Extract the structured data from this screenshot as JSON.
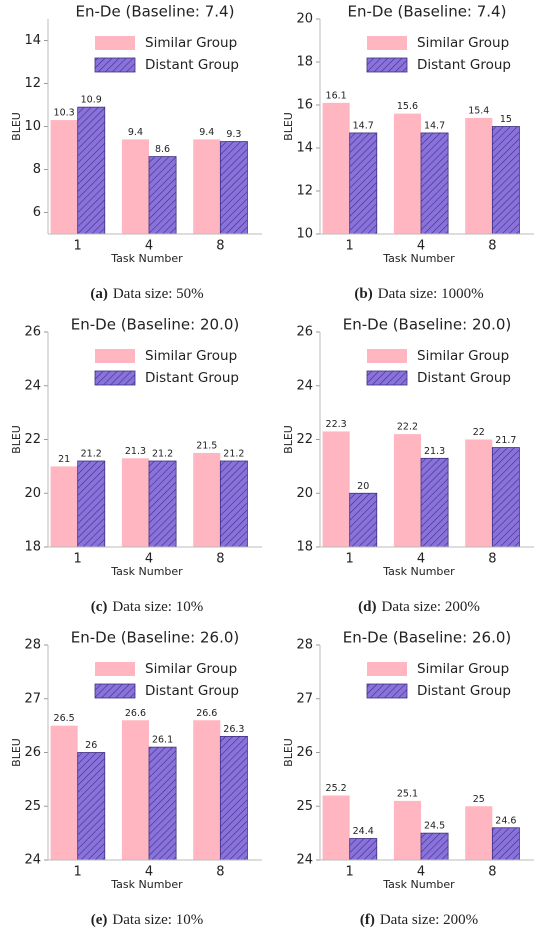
{
  "chart_data": [
    {
      "type": "bar",
      "title": "En-De (Baseline: 7.4)",
      "ylabel": "BLEU",
      "xlabel": "Task Number",
      "categories": [
        "1",
        "4",
        "8"
      ],
      "ylim": [
        5,
        15
      ],
      "yticks": [
        6,
        8,
        10,
        12,
        14
      ],
      "legend": "upper right",
      "series": [
        {
          "name": "Similar Group",
          "color": "#ffb6c1",
          "hatch": false,
          "values": [
            10.3,
            9.4,
            9.4
          ]
        },
        {
          "name": "Distant Group",
          "color": "#8a72dc",
          "hatch": true,
          "values": [
            10.9,
            8.6,
            9.3
          ]
        }
      ],
      "caption_label": "(a)",
      "caption": "Data size: 50%"
    },
    {
      "type": "bar",
      "title": "En-De (Baseline: 7.4)",
      "ylabel": "BLEU",
      "xlabel": "Task Number",
      "categories": [
        "1",
        "4",
        "8"
      ],
      "ylim": [
        10,
        20
      ],
      "yticks": [
        10,
        12,
        14,
        16,
        18,
        20
      ],
      "legend": "upper right",
      "series": [
        {
          "name": "Similar Group",
          "color": "#ffb6c1",
          "hatch": false,
          "values": [
            16.1,
            15.6,
            15.4
          ]
        },
        {
          "name": "Distant Group",
          "color": "#8a72dc",
          "hatch": true,
          "values": [
            14.7,
            14.7,
            15
          ]
        }
      ],
      "caption_label": "(b)",
      "caption": "Data size: 1000%"
    },
    {
      "type": "bar",
      "title": "En-De (Baseline: 20.0)",
      "ylabel": "BLEU",
      "xlabel": "Task Number",
      "categories": [
        "1",
        "4",
        "8"
      ],
      "ylim": [
        18,
        26
      ],
      "yticks": [
        18,
        20,
        22,
        24,
        26
      ],
      "legend": "upper right",
      "series": [
        {
          "name": "Similar Group",
          "color": "#ffb6c1",
          "hatch": false,
          "values": [
            21,
            21.3,
            21.5
          ]
        },
        {
          "name": "Distant Group",
          "color": "#8a72dc",
          "hatch": true,
          "values": [
            21.2,
            21.2,
            21.2
          ]
        }
      ],
      "caption_label": "(c)",
      "caption": "Data size: 10%"
    },
    {
      "type": "bar",
      "title": "En-De (Baseline: 20.0)",
      "ylabel": "BLEU",
      "xlabel": "Task Number",
      "categories": [
        "1",
        "4",
        "8"
      ],
      "ylim": [
        18,
        26
      ],
      "yticks": [
        18,
        20,
        22,
        24,
        26
      ],
      "legend": "upper right",
      "series": [
        {
          "name": "Similar Group",
          "color": "#ffb6c1",
          "hatch": false,
          "values": [
            22.3,
            22.2,
            22
          ]
        },
        {
          "name": "Distant Group",
          "color": "#8a72dc",
          "hatch": true,
          "values": [
            20,
            21.3,
            21.7
          ]
        }
      ],
      "caption_label": "(d)",
      "caption": "Data size: 200%"
    },
    {
      "type": "bar",
      "title": "En-De (Baseline: 26.0)",
      "ylabel": "BLEU",
      "xlabel": "Task Number",
      "categories": [
        "1",
        "4",
        "8"
      ],
      "ylim": [
        24,
        28
      ],
      "yticks": [
        24,
        25,
        26,
        27,
        28
      ],
      "legend": "upper right",
      "series": [
        {
          "name": "Similar Group",
          "color": "#ffb6c1",
          "hatch": false,
          "values": [
            26.5,
            26.6,
            26.6
          ]
        },
        {
          "name": "Distant Group",
          "color": "#8a72dc",
          "hatch": true,
          "values": [
            26,
            26.1,
            26.3
          ]
        }
      ],
      "caption_label": "(e)",
      "caption": "Data size: 10%"
    },
    {
      "type": "bar",
      "title": "En-De (Baseline: 26.0)",
      "ylabel": "BLEU",
      "xlabel": "Task Number",
      "categories": [
        "1",
        "4",
        "8"
      ],
      "ylim": [
        24,
        28
      ],
      "yticks": [
        24,
        25,
        26,
        27,
        28
      ],
      "legend": "upper right",
      "series": [
        {
          "name": "Similar Group",
          "color": "#ffb6c1",
          "hatch": false,
          "values": [
            25.2,
            25.1,
            25
          ]
        },
        {
          "name": "Distant Group",
          "color": "#8a72dc",
          "hatch": true,
          "values": [
            24.4,
            24.5,
            24.6
          ]
        }
      ],
      "caption_label": "(f)",
      "caption": "Data size: 200%"
    }
  ]
}
